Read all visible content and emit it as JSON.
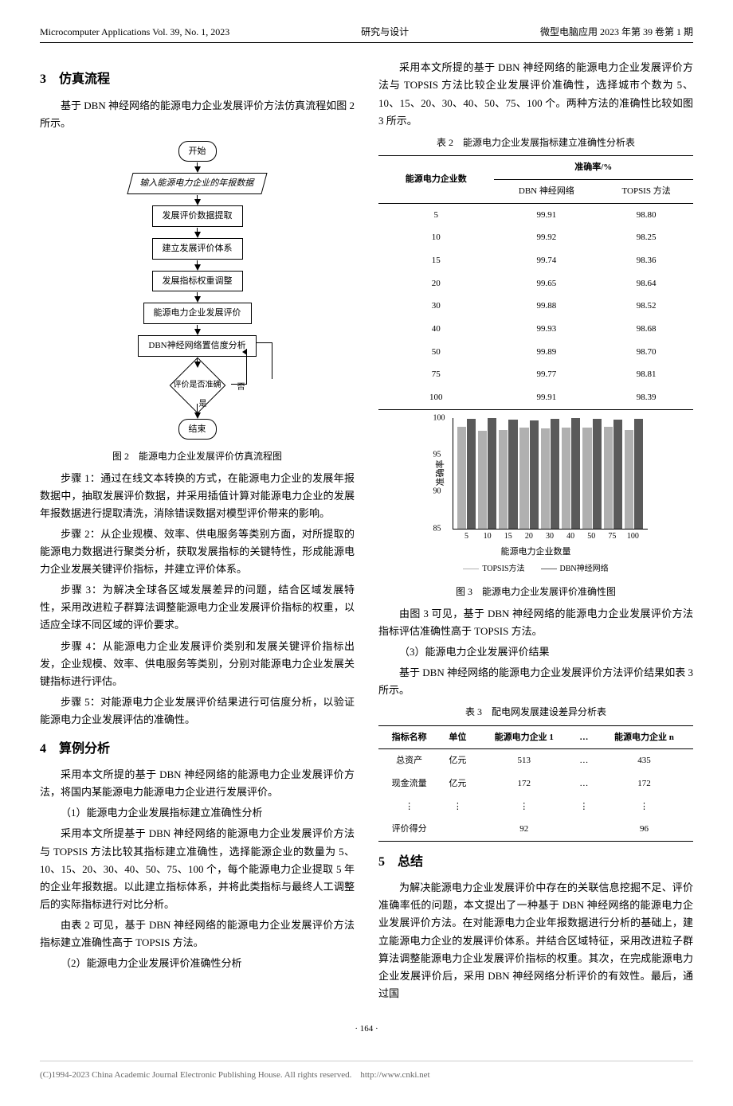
{
  "header": {
    "left": "Microcomputer Applications Vol. 39, No. 1, 2023",
    "center": "研究与设计",
    "right": "微型电脑应用 2023 年第 39 卷第 1 期"
  },
  "section3": {
    "title": "3　仿真流程",
    "intro": "基于 DBN 神经网络的能源电力企业发展评价方法仿真流程如图 2 所示。"
  },
  "flowchart": {
    "nodes": [
      "开始",
      "输入能源电力企业的年报数据",
      "发展评价数据提取",
      "建立发展评价体系",
      "发展指标权重调整",
      "能源电力企业发展评价",
      "DBN神经网络置信度分析",
      "评价是否准确",
      "结束"
    ],
    "diamond_no": "否",
    "diamond_yes": "是",
    "caption": "图 2　能源电力企业发展评价仿真流程图"
  },
  "steps": [
    "步骤 1：通过在线文本转换的方式，在能源电力企业的发展年报数据中，抽取发展评价数据，并采用插值计算对能源电力企业的发展年报数据进行提取清洗，消除错误数据对模型评价带来的影响。",
    "步骤 2：从企业规模、效率、供电服务等类别方面，对所提取的能源电力数据进行聚类分析，获取发展指标的关键特性，形成能源电力企业发展关键评价指标，并建立评价体系。",
    "步骤 3：为解决全球各区域发展差异的问题，结合区域发展特性，采用改进粒子群算法调整能源电力企业发展评价指标的权重，以适应全球不同区域的评价要求。",
    "步骤 4：从能源电力企业发展评价类别和发展关键评价指标出发，企业规模、效率、供电服务等类别，分别对能源电力企业发展关键指标进行评估。",
    "步骤 5：对能源电力企业发展评价结果进行可信度分析，以验证能源电力企业发展评估的准确性。"
  ],
  "section4": {
    "title": "4　算例分析",
    "p1": "采用本文所提的基于 DBN 神经网络的能源电力企业发展评价方法，将国内某能源电力能源电力企业进行发展评价。",
    "sub1": "（1）能源电力企业发展指标建立准确性分析",
    "p2": "采用本文所提基于 DBN 神经网络的能源电力企业发展评价方法与 TOPSIS 方法比较其指标建立准确性，选择能源企业的数量为 5、10、15、20、30、40、50、75、100 个，每个能源电力企业提取 5 年的企业年报数据。以此建立指标体系，并将此类指标与最终人工调整后的实际指标进行对比分析。",
    "p3": "由表 2 可见，基于 DBN 神经网络的能源电力企业发展评价方法指标建立准确性高于 TOPSIS 方法。",
    "sub2": "（2）能源电力企业发展评价准确性分析"
  },
  "col2": {
    "p1": "采用本文所提的基于 DBN 神经网络的能源电力企业发展评价方法与 TOPSIS 方法比较企业发展评价准确性，选择城市个数为 5、10、15、20、30、40、50、75、100 个。两种方法的准确性比较如图 3 所示。"
  },
  "table2": {
    "caption": "表 2　能源电力企业发展指标建立准确性分析表",
    "header1": "能源电力企业数",
    "header2": "准确率/%",
    "col1": "DBN 神经网络",
    "col2": "TOPSIS 方法",
    "rows": [
      {
        "n": "5",
        "dbn": "99.91",
        "topsis": "98.80"
      },
      {
        "n": "10",
        "dbn": "99.92",
        "topsis": "98.25"
      },
      {
        "n": "15",
        "dbn": "99.74",
        "topsis": "98.36"
      },
      {
        "n": "20",
        "dbn": "99.65",
        "topsis": "98.64"
      },
      {
        "n": "30",
        "dbn": "99.88",
        "topsis": "98.52"
      },
      {
        "n": "40",
        "dbn": "99.93",
        "topsis": "98.68"
      },
      {
        "n": "50",
        "dbn": "99.89",
        "topsis": "98.70"
      },
      {
        "n": "75",
        "dbn": "99.77",
        "topsis": "98.81"
      },
      {
        "n": "100",
        "dbn": "99.91",
        "topsis": "98.39"
      }
    ]
  },
  "chart": {
    "type": "bar",
    "ylabel": "准确率",
    "xlabel": "能源电力企业数量",
    "caption": "图 3　能源电力企业发展评价准确性图",
    "ylim": [
      85,
      100
    ],
    "yticks": [
      85,
      90,
      95,
      100
    ],
    "categories": [
      "5",
      "10",
      "15",
      "20",
      "30",
      "40",
      "50",
      "75",
      "100"
    ],
    "series": [
      {
        "name": "TOPSIS方法",
        "color": "#b0b0b0",
        "values": [
          98.8,
          98.25,
          98.36,
          98.64,
          98.52,
          98.68,
          98.7,
          98.81,
          98.39
        ]
      },
      {
        "name": "DBN神经网络",
        "color": "#5a5a5a",
        "values": [
          99.91,
          99.92,
          99.74,
          99.65,
          99.88,
          99.93,
          99.89,
          99.77,
          99.91
        ]
      }
    ],
    "legend_line1": "TOPSIS方法",
    "legend_line2": "DBN神经网络",
    "legend_color1": "#b0b0b0",
    "legend_color2": "#5a5a5a"
  },
  "after_chart": {
    "p1": "由图 3 可见，基于 DBN 神经网络的能源电力企业发展评价方法指标评估准确性高于 TOPSIS 方法。",
    "sub3": "（3）能源电力企业发展评价结果",
    "p2": "基于 DBN 神经网络的能源电力企业发展评价方法评价结果如表 3 所示。"
  },
  "table3": {
    "caption": "表 3　配电网发展建设差异分析表",
    "headers": [
      "指标名称",
      "单位",
      "能源电力企业 1",
      "…",
      "能源电力企业 n"
    ],
    "rows": [
      [
        "总资产",
        "亿元",
        "513",
        "…",
        "435"
      ],
      [
        "现金流量",
        "亿元",
        "172",
        "…",
        "172"
      ],
      [
        "⋮",
        "⋮",
        "⋮",
        "⋮",
        "⋮"
      ],
      [
        "评价得分",
        "",
        "92",
        "",
        "96"
      ]
    ]
  },
  "section5": {
    "title": "5　总结",
    "p1": "为解决能源电力企业发展评价中存在的关联信息挖掘不足、评价准确率低的问题，本文提出了一种基于 DBN 神经网络的能源电力企业发展评价方法。在对能源电力企业年报数据进行分析的基础上，建立能源电力企业的发展评价体系。并结合区域特征，采用改进粒子群算法调整能源电力企业发展评价指标的权重。其次，在完成能源电力企业发展评价后，采用 DBN 神经网络分析评价的有效性。最后，通过国"
  },
  "footer": {
    "page": "· 164 ·",
    "copyright": "(C)1994-2023 China Academic Journal Electronic Publishing House. All rights reserved.　http://www.cnki.net"
  }
}
